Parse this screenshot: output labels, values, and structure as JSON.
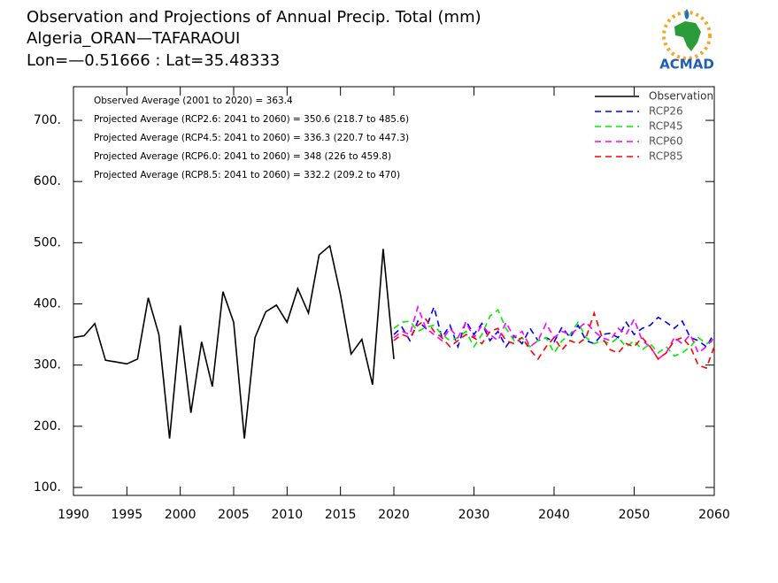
{
  "chart_data": {
    "type": "line",
    "title": "Observation and Projections of Annual Precip. Total (mm)",
    "subtitle": [
      "Algeria_ORAN—TAFARAOUI",
      "Lon=—0.51666 : Lat=35.48333"
    ],
    "logo": "ACMAD",
    "annotations": [
      "Observed Average (2001 to 2020) = 363.4",
      "Projected Average (RCP2.6: 2041 to 2060) = 350.6 (218.7 to 485.6)",
      "Projected Average (RCP4.5: 2041 to 2060) = 336.3 (220.7 to 447.3)",
      "Projected Average (RCP6.0: 2041 to 2060) = 348 (226 to 459.8)",
      "Projected Average (RCP8.5: 2041 to 2060) = 332.2 (209.2 to 470)"
    ],
    "xlim": [
      1990,
      2060
    ],
    "x_break": 2020,
    "xticks": [
      1990,
      1995,
      2000,
      2005,
      2010,
      2015,
      2020,
      2030,
      2040,
      2050,
      2060
    ],
    "ylim": [
      87,
      755
    ],
    "yticks": [
      {
        "value": 100,
        "label": "100."
      },
      {
        "value": 200,
        "label": "200."
      },
      {
        "value": 300,
        "label": "300."
      },
      {
        "value": 400,
        "label": "400."
      },
      {
        "value": 500,
        "label": "500."
      },
      {
        "value": 600,
        "label": "600."
      },
      {
        "value": 700,
        "label": "700."
      }
    ],
    "grid": false,
    "legend": "top-right",
    "series": [
      {
        "name": "Observation",
        "color": "#000000",
        "style": "solid",
        "x": [
          1990,
          1991,
          1992,
          1993,
          1994,
          1995,
          1996,
          1997,
          1998,
          1999,
          2000,
          2001,
          2002,
          2003,
          2004,
          2005,
          2006,
          2007,
          2008,
          2009,
          2010,
          2011,
          2012,
          2013,
          2014,
          2015,
          2016,
          2017,
          2018,
          2019,
          2020
        ],
        "values": [
          345,
          348,
          368,
          308,
          305,
          302,
          310,
          410,
          350,
          180,
          365,
          222,
          338,
          265,
          420,
          370,
          180,
          345,
          387,
          398,
          370,
          425,
          385,
          480,
          495,
          415,
          318,
          342,
          268,
          490,
          310
        ]
      },
      {
        "name": "RCP26",
        "color": "#0000ff",
        "style": "dashed",
        "x": [
          2020,
          2021,
          2022,
          2023,
          2024,
          2025,
          2026,
          2027,
          2028,
          2029,
          2030,
          2031,
          2032,
          2033,
          2034,
          2035,
          2036,
          2037,
          2038,
          2039,
          2040,
          2041,
          2042,
          2043,
          2044,
          2045,
          2046,
          2047,
          2048,
          2049,
          2050,
          2051,
          2052,
          2053,
          2054,
          2055,
          2056,
          2057,
          2058,
          2059,
          2060
        ],
        "values": [
          350,
          362,
          340,
          372,
          360,
          395,
          345,
          365,
          330,
          372,
          350,
          368,
          340,
          355,
          330,
          348,
          335,
          360,
          340,
          345,
          338,
          362,
          345,
          365,
          340,
          335,
          350,
          352,
          345,
          370,
          350,
          360,
          365,
          378,
          370,
          360,
          372,
          345,
          340,
          330,
          352
        ]
      },
      {
        "name": "RCP45",
        "color": "#00ee00",
        "style": "dashed",
        "x": [
          2020,
          2021,
          2022,
          2023,
          2024,
          2025,
          2026,
          2027,
          2028,
          2029,
          2030,
          2031,
          2032,
          2033,
          2034,
          2035,
          2036,
          2037,
          2038,
          2039,
          2040,
          2041,
          2042,
          2043,
          2044,
          2045,
          2046,
          2047,
          2048,
          2049,
          2050,
          2051,
          2052,
          2053,
          2054,
          2055,
          2056,
          2057,
          2058,
          2059,
          2060
        ],
        "values": [
          360,
          370,
          372,
          355,
          362,
          365,
          350,
          340,
          345,
          355,
          330,
          350,
          380,
          390,
          360,
          340,
          345,
          330,
          340,
          345,
          320,
          340,
          350,
          370,
          345,
          335,
          340,
          335,
          345,
          330,
          340,
          325,
          335,
          320,
          330,
          315,
          320,
          330,
          345,
          335,
          340
        ]
      },
      {
        "name": "RCP60",
        "color": "#ff00ff",
        "style": "dashed",
        "x": [
          2020,
          2021,
          2022,
          2023,
          2024,
          2025,
          2026,
          2027,
          2028,
          2029,
          2030,
          2031,
          2032,
          2033,
          2034,
          2035,
          2036,
          2037,
          2038,
          2039,
          2040,
          2041,
          2042,
          2043,
          2044,
          2045,
          2046,
          2047,
          2048,
          2049,
          2050,
          2051,
          2052,
          2053,
          2054,
          2055,
          2056,
          2057,
          2058,
          2059,
          2060
        ],
        "values": [
          345,
          355,
          350,
          395,
          360,
          350,
          340,
          360,
          345,
          370,
          345,
          365,
          350,
          340,
          370,
          345,
          355,
          330,
          340,
          368,
          345,
          355,
          350,
          360,
          370,
          355,
          345,
          340,
          360,
          350,
          375,
          340,
          330,
          310,
          320,
          345,
          335,
          350,
          320,
          330,
          345
        ]
      },
      {
        "name": "RCP85",
        "color": "#ff0000",
        "style": "dashed",
        "x": [
          2020,
          2021,
          2022,
          2023,
          2024,
          2025,
          2026,
          2027,
          2028,
          2029,
          2030,
          2031,
          2032,
          2033,
          2034,
          2035,
          2036,
          2037,
          2038,
          2039,
          2040,
          2041,
          2042,
          2043,
          2044,
          2045,
          2046,
          2047,
          2048,
          2049,
          2050,
          2051,
          2052,
          2053,
          2054,
          2055,
          2056,
          2057,
          2058,
          2059,
          2060
        ],
        "values": [
          340,
          350,
          345,
          365,
          375,
          355,
          345,
          330,
          340,
          350,
          345,
          335,
          355,
          360,
          340,
          335,
          345,
          325,
          310,
          330,
          345,
          325,
          340,
          335,
          345,
          385,
          345,
          325,
          320,
          335,
          330,
          345,
          330,
          310,
          320,
          340,
          345,
          330,
          300,
          295,
          330
        ]
      }
    ]
  }
}
